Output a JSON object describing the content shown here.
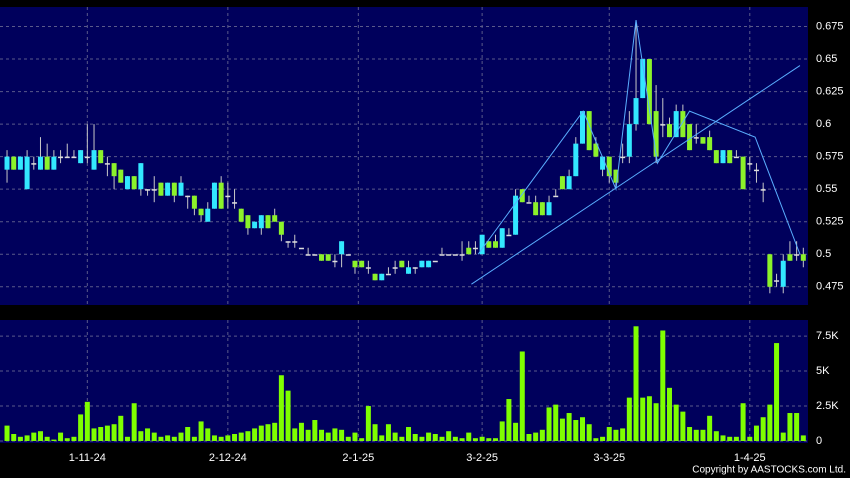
{
  "chart_data": [
    {
      "type": "candlestick",
      "open": [
        0.565,
        0.575,
        0.565,
        0.55,
        0.57,
        0.565,
        0.575,
        0.565,
        0.575,
        0.575,
        0.575,
        0.57,
        0.575,
        0.565,
        0.58,
        0.57,
        0.57,
        0.565,
        0.55,
        0.56,
        0.55,
        0.55,
        0.55,
        0.555,
        0.545,
        0.555,
        0.545,
        0.545,
        0.545,
        0.535,
        0.525,
        0.535,
        0.555,
        0.545,
        0.54,
        0.535,
        0.53,
        0.52,
        0.52,
        0.53,
        0.53,
        0.525,
        0.51,
        0.51,
        0.505,
        0.5,
        0.5,
        0.5,
        0.5,
        0.495,
        0.5,
        0.5,
        0.495,
        0.495,
        0.49,
        0.485,
        0.48,
        0.485,
        0.49,
        0.495,
        0.485,
        0.49,
        0.49,
        0.49,
        0.495,
        0.5,
        0.5,
        0.5,
        0.5,
        0.505,
        0.505,
        0.5,
        0.51,
        0.51,
        0.505,
        0.515,
        0.515,
        0.55,
        0.54,
        0.54,
        0.54,
        0.53,
        0.545,
        0.56,
        0.55,
        0.56,
        0.585,
        0.61,
        0.585,
        0.565,
        0.575,
        0.565,
        0.575,
        0.575,
        0.6,
        0.62,
        0.65,
        0.61,
        0.6,
        0.6,
        0.59,
        0.61,
        0.6,
        0.59,
        0.59,
        0.59,
        0.58,
        0.57,
        0.58,
        0.575,
        0.575,
        0.57,
        0.565,
        0.55,
        0.5,
        0.48,
        0.475,
        0.5,
        0.5,
        0.5
      ],
      "high": [
        0.58,
        0.575,
        0.575,
        0.58,
        0.575,
        0.59,
        0.585,
        0.58,
        0.58,
        0.585,
        0.58,
        0.58,
        0.6,
        0.6,
        0.58,
        0.575,
        0.57,
        0.565,
        0.56,
        0.56,
        0.57,
        0.55,
        0.56,
        0.555,
        0.555,
        0.555,
        0.56,
        0.545,
        0.545,
        0.535,
        0.54,
        0.555,
        0.56,
        0.555,
        0.55,
        0.535,
        0.53,
        0.525,
        0.53,
        0.53,
        0.535,
        0.525,
        0.51,
        0.515,
        0.505,
        0.505,
        0.5,
        0.5,
        0.5,
        0.5,
        0.51,
        0.5,
        0.495,
        0.495,
        0.495,
        0.485,
        0.485,
        0.49,
        0.495,
        0.495,
        0.495,
        0.49,
        0.495,
        0.495,
        0.495,
        0.505,
        0.5,
        0.5,
        0.51,
        0.51,
        0.51,
        0.515,
        0.51,
        0.515,
        0.52,
        0.52,
        0.55,
        0.55,
        0.545,
        0.545,
        0.54,
        0.545,
        0.55,
        0.56,
        0.565,
        0.59,
        0.61,
        0.61,
        0.59,
        0.575,
        0.575,
        0.565,
        0.585,
        0.61,
        0.68,
        0.65,
        0.65,
        0.63,
        0.62,
        0.605,
        0.615,
        0.615,
        0.6,
        0.6,
        0.59,
        0.595,
        0.58,
        0.58,
        0.58,
        0.58,
        0.575,
        0.575,
        0.57,
        0.555,
        0.5,
        0.485,
        0.5,
        0.51,
        0.51,
        0.505
      ],
      "low": [
        0.555,
        0.565,
        0.565,
        0.55,
        0.565,
        0.565,
        0.565,
        0.565,
        0.57,
        0.575,
        0.575,
        0.57,
        0.57,
        0.565,
        0.57,
        0.56,
        0.55,
        0.555,
        0.55,
        0.55,
        0.545,
        0.545,
        0.54,
        0.545,
        0.545,
        0.54,
        0.545,
        0.535,
        0.53,
        0.525,
        0.525,
        0.535,
        0.535,
        0.535,
        0.535,
        0.525,
        0.515,
        0.52,
        0.515,
        0.52,
        0.525,
        0.51,
        0.505,
        0.505,
        0.505,
        0.5,
        0.5,
        0.495,
        0.495,
        0.49,
        0.49,
        0.5,
        0.485,
        0.49,
        0.485,
        0.48,
        0.48,
        0.485,
        0.485,
        0.49,
        0.485,
        0.485,
        0.49,
        0.49,
        0.495,
        0.5,
        0.5,
        0.5,
        0.495,
        0.5,
        0.5,
        0.5,
        0.505,
        0.505,
        0.505,
        0.515,
        0.515,
        0.54,
        0.54,
        0.53,
        0.53,
        0.53,
        0.545,
        0.55,
        0.55,
        0.56,
        0.585,
        0.58,
        0.575,
        0.56,
        0.555,
        0.55,
        0.57,
        0.57,
        0.595,
        0.62,
        0.6,
        0.57,
        0.59,
        0.59,
        0.59,
        0.59,
        0.58,
        0.585,
        0.585,
        0.58,
        0.57,
        0.57,
        0.57,
        0.575,
        0.55,
        0.565,
        0.555,
        0.54,
        0.47,
        0.475,
        0.47,
        0.495,
        0.495,
        0.49
      ],
      "close": [
        0.575,
        0.565,
        0.575,
        0.575,
        0.57,
        0.575,
        0.565,
        0.575,
        0.575,
        0.575,
        0.575,
        0.58,
        0.575,
        0.58,
        0.57,
        0.57,
        0.56,
        0.555,
        0.56,
        0.55,
        0.57,
        0.55,
        0.55,
        0.545,
        0.555,
        0.545,
        0.555,
        0.545,
        0.535,
        0.53,
        0.535,
        0.555,
        0.535,
        0.545,
        0.54,
        0.525,
        0.52,
        0.525,
        0.53,
        0.52,
        0.525,
        0.515,
        0.51,
        0.51,
        0.505,
        0.5,
        0.5,
        0.495,
        0.495,
        0.495,
        0.51,
        0.5,
        0.49,
        0.49,
        0.49,
        0.48,
        0.485,
        0.485,
        0.49,
        0.49,
        0.49,
        0.49,
        0.495,
        0.495,
        0.495,
        0.5,
        0.5,
        0.5,
        0.5,
        0.5,
        0.505,
        0.515,
        0.505,
        0.505,
        0.52,
        0.515,
        0.545,
        0.54,
        0.54,
        0.53,
        0.53,
        0.54,
        0.545,
        0.55,
        0.56,
        0.585,
        0.61,
        0.58,
        0.575,
        0.575,
        0.56,
        0.555,
        0.575,
        0.6,
        0.62,
        0.65,
        0.6,
        0.575,
        0.6,
        0.59,
        0.61,
        0.59,
        0.58,
        0.59,
        0.585,
        0.58,
        0.57,
        0.58,
        0.57,
        0.575,
        0.55,
        0.57,
        0.565,
        0.55,
        0.475,
        0.48,
        0.495,
        0.495,
        0.5,
        0.495
      ],
      "up_color": "#33e8ff",
      "down_color": "#8cf22a",
      "flat_color": "#dddddd",
      "wick_color": "#c8c8c8",
      "overlays": [
        {
          "color": "#5aaeff",
          "points": [
            [
              70.4,
              0.5
            ],
            [
              86.1,
              0.61
            ],
            [
              91,
              0.55
            ],
            [
              94,
              0.68
            ],
            [
              97.2,
              0.57
            ],
            [
              102,
              0.61
            ],
            [
              111.8,
              0.59
            ],
            [
              118.5,
              0.5
            ]
          ]
        },
        {
          "color": "#5aaeff",
          "points": [
            [
              69.4,
              0.477
            ],
            [
              118.5,
              0.645
            ]
          ]
        }
      ],
      "xlim": [
        -1.05,
        119.7
      ],
      "ylim": [
        0.461,
        0.69
      ],
      "yticks": [
        0.475,
        0.5,
        0.525,
        0.55,
        0.575,
        0.6,
        0.625,
        0.65,
        0.675
      ],
      "grid": true
    },
    {
      "type": "bar",
      "values": [
        1100,
        500,
        300,
        400,
        600,
        700,
        300,
        100,
        600,
        200,
        300,
        1900,
        2800,
        900,
        1000,
        1100,
        1200,
        1800,
        300,
        2700,
        700,
        900,
        600,
        300,
        400,
        300,
        600,
        1000,
        300,
        1400,
        900,
        400,
        300,
        400,
        500,
        600,
        700,
        900,
        1100,
        1200,
        1300,
        4700,
        3600,
        900,
        1300,
        800,
        1500,
        800,
        600,
        900,
        800,
        300,
        600,
        200,
        2500,
        1200,
        400,
        1200,
        600,
        300,
        1000,
        500,
        300,
        600,
        500,
        300,
        700,
        300,
        200,
        600,
        200,
        300,
        200,
        200,
        1400,
        3000,
        1300,
        6400,
        500,
        600,
        800,
        2400,
        2600,
        1600,
        2000,
        1500,
        1700,
        1200,
        200,
        300,
        1000,
        800,
        900,
        3100,
        8200,
        3100,
        3200,
        2700,
        7900,
        3800,
        2600,
        2100,
        1000,
        800,
        800,
        1800,
        700,
        400,
        300,
        300,
        2700,
        300,
        1100,
        1700,
        2600,
        7000,
        600,
        2000,
        2000,
        400
      ],
      "color": "#7fff00",
      "xlim": [
        -1.05,
        119.7
      ],
      "xticks": [
        {
          "value": 12,
          "label": "1-11-24"
        },
        {
          "value": 33,
          "label": "2-12-24"
        },
        {
          "value": 52.5,
          "label": "2-1-25"
        },
        {
          "value": 71,
          "label": "3-2-25"
        },
        {
          "value": 90,
          "label": "3-3-25"
        },
        {
          "value": 111,
          "label": "1-4-25"
        }
      ],
      "ylim": [
        0,
        8650
      ],
      "yticks": [
        0,
        {
          "value": 2500,
          "label": "2.5K"
        },
        {
          "value": 5000,
          "label": "5K"
        },
        {
          "value": 7500,
          "label": "7.5K"
        }
      ],
      "grid": true
    }
  ],
  "copyright": "Copyright by AASTOCKS.com Ltd."
}
